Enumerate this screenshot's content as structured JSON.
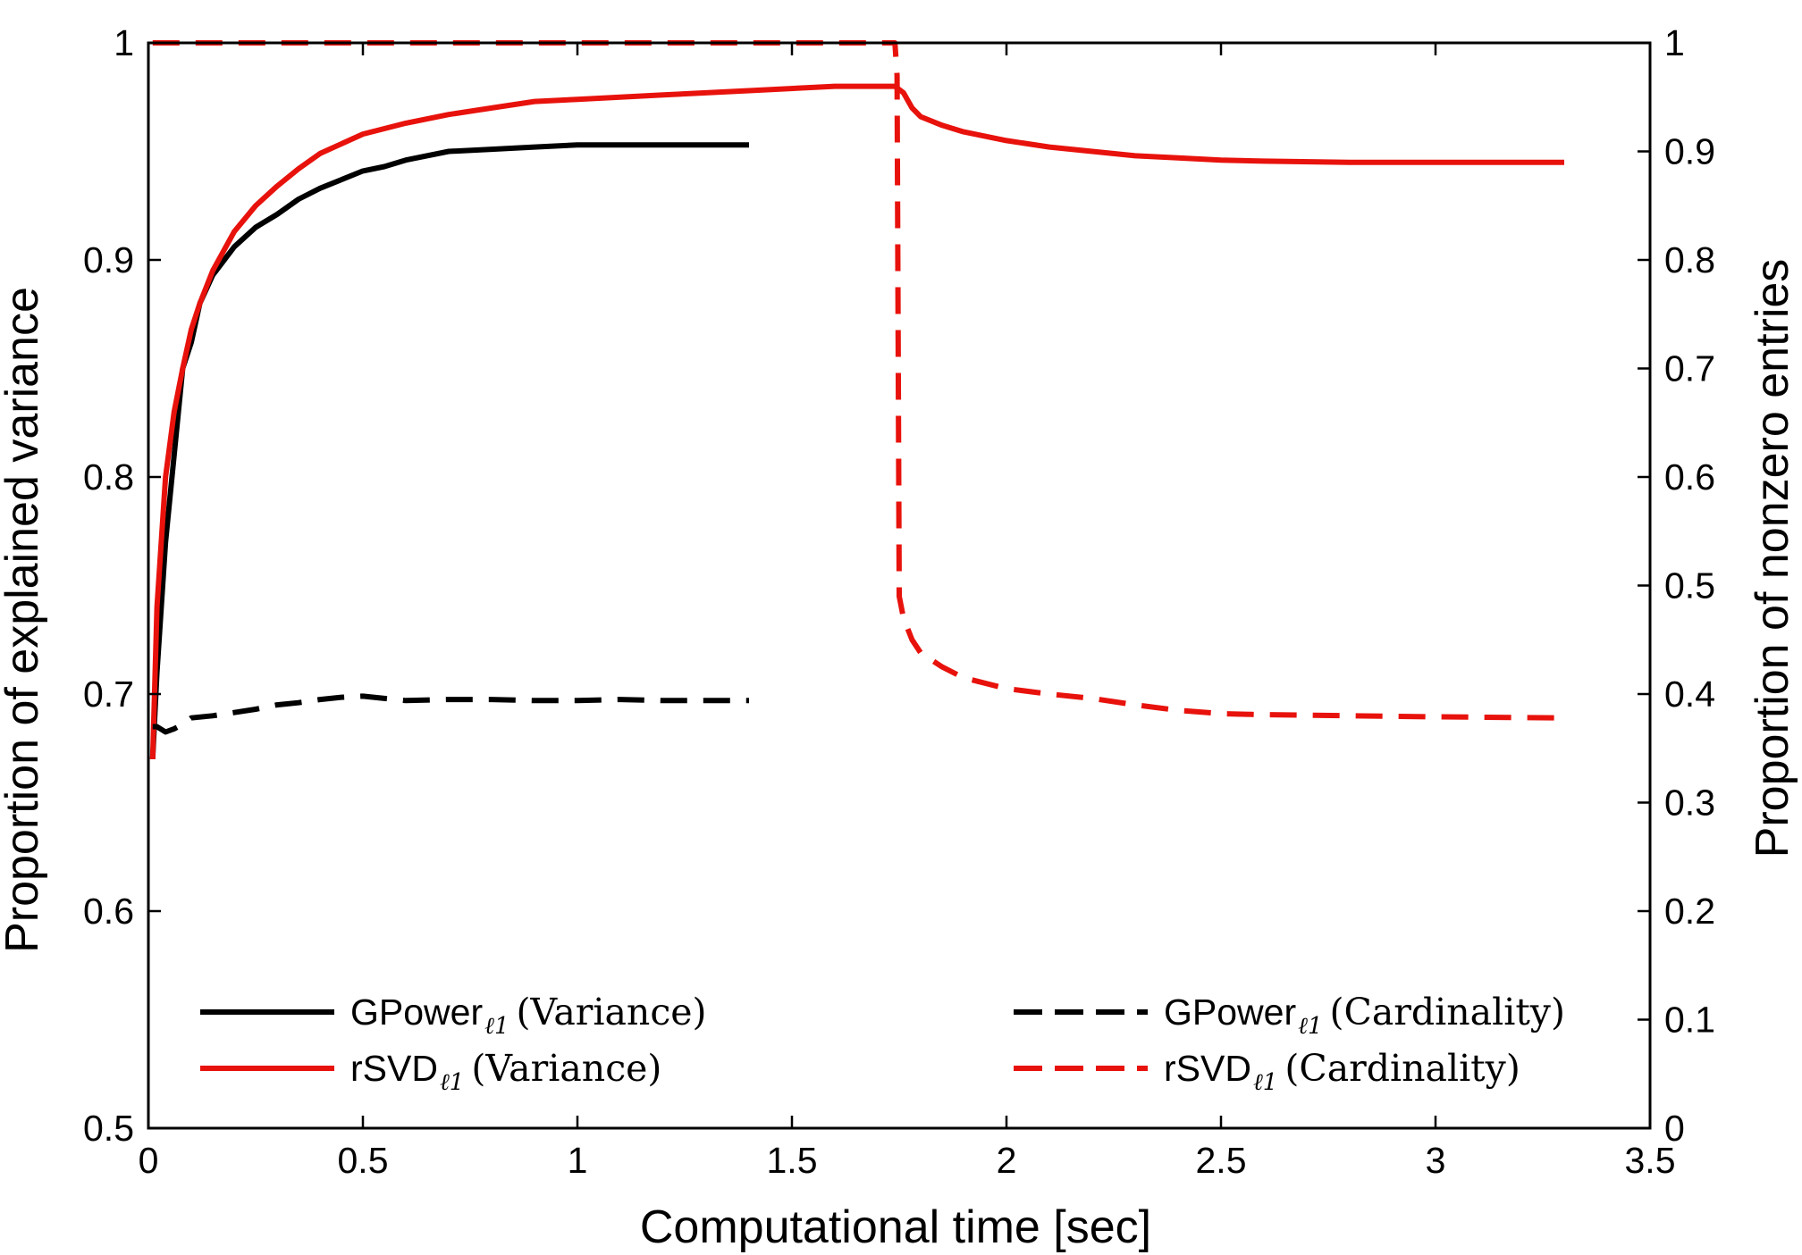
{
  "chart_data": {
    "type": "line",
    "title": "",
    "xlabel": "Computational time [sec]",
    "ylabel_left": "Proportion of explained variance",
    "ylabel_right": "Proportion of nonzero entries",
    "xlim": [
      0,
      3.5
    ],
    "ylim_left": [
      0.5,
      1.0
    ],
    "ylim_right": [
      0,
      1
    ],
    "x_ticks": [
      "0",
      "0.5",
      "1",
      "1.5",
      "2",
      "2.5",
      "3",
      "3.5"
    ],
    "y_left_ticks": [
      "0.5",
      "0.6",
      "0.7",
      "0.8",
      "0.9",
      "1"
    ],
    "y_right_ticks": [
      "0",
      "0.1",
      "0.2",
      "0.3",
      "0.4",
      "0.5",
      "0.6",
      "0.7",
      "0.8",
      "0.9",
      "1"
    ],
    "grid": false,
    "series": [
      {
        "name": "GPower (Variance)",
        "legend_main": "GPower",
        "legend_sub": "ℓ1",
        "legend_suffix": "(Variance)",
        "axis": "left",
        "color": "#000000",
        "dash": "solid",
        "x": [
          0.01,
          0.02,
          0.04,
          0.06,
          0.08,
          0.1,
          0.12,
          0.15,
          0.2,
          0.25,
          0.3,
          0.35,
          0.4,
          0.45,
          0.5,
          0.55,
          0.6,
          0.7,
          0.8,
          0.9,
          1.0,
          1.1,
          1.2,
          1.3,
          1.4
        ],
        "y": [
          0.67,
          0.71,
          0.77,
          0.81,
          0.85,
          0.862,
          0.88,
          0.893,
          0.906,
          0.915,
          0.921,
          0.928,
          0.933,
          0.937,
          0.941,
          0.943,
          0.946,
          0.95,
          0.951,
          0.952,
          0.953,
          0.953,
          0.953,
          0.953,
          0.953
        ]
      },
      {
        "name": "rSVD (Variance)",
        "legend_main": "rSVD",
        "legend_sub": "ℓ1",
        "legend_suffix": "(Variance)",
        "axis": "left",
        "color": "#e8120c",
        "dash": "solid",
        "x": [
          0.01,
          0.02,
          0.04,
          0.06,
          0.08,
          0.1,
          0.12,
          0.15,
          0.2,
          0.25,
          0.3,
          0.35,
          0.4,
          0.5,
          0.6,
          0.7,
          0.8,
          0.9,
          1.0,
          1.2,
          1.4,
          1.6,
          1.7,
          1.74,
          1.76,
          1.78,
          1.8,
          1.85,
          1.9,
          2.0,
          2.1,
          2.2,
          2.3,
          2.4,
          2.5,
          2.6,
          2.8,
          3.0,
          3.3
        ],
        "y": [
          0.67,
          0.74,
          0.8,
          0.83,
          0.85,
          0.868,
          0.88,
          0.895,
          0.913,
          0.925,
          0.934,
          0.942,
          0.949,
          0.958,
          0.963,
          0.967,
          0.97,
          0.973,
          0.974,
          0.976,
          0.978,
          0.98,
          0.98,
          0.98,
          0.977,
          0.97,
          0.966,
          0.962,
          0.959,
          0.955,
          0.952,
          0.95,
          0.948,
          0.947,
          0.946,
          0.9455,
          0.945,
          0.945,
          0.945
        ]
      },
      {
        "name": "GPower (Cardinality)",
        "legend_main": "GPower",
        "legend_sub": "ℓ1",
        "legend_suffix": "(Cardinality)",
        "axis": "right",
        "color": "#000000",
        "dash": "dashed",
        "x": [
          0.01,
          0.02,
          0.04,
          0.06,
          0.08,
          0.1,
          0.15,
          0.2,
          0.25,
          0.3,
          0.35,
          0.4,
          0.45,
          0.5,
          0.55,
          0.6,
          0.7,
          0.8,
          0.9,
          1.0,
          1.1,
          1.2,
          1.3,
          1.4
        ],
        "y": [
          0.37,
          0.37,
          0.365,
          0.368,
          0.372,
          0.378,
          0.38,
          0.383,
          0.386,
          0.39,
          0.392,
          0.395,
          0.397,
          0.398,
          0.396,
          0.394,
          0.395,
          0.395,
          0.394,
          0.394,
          0.395,
          0.394,
          0.394,
          0.394
        ]
      },
      {
        "name": "rSVD (Cardinality)",
        "legend_main": "rSVD",
        "legend_sub": "ℓ1",
        "legend_suffix": "(Cardinality)",
        "axis": "right",
        "color": "#e8120c",
        "dash": "dashed",
        "x": [
          0.01,
          1.74,
          1.745,
          1.75,
          1.76,
          1.78,
          1.8,
          1.85,
          1.9,
          2.0,
          2.1,
          2.2,
          2.3,
          2.4,
          2.5,
          2.6,
          2.8,
          3.0,
          3.3
        ],
        "y": [
          1.0,
          1.0,
          0.97,
          0.49,
          0.47,
          0.45,
          0.438,
          0.425,
          0.415,
          0.405,
          0.4,
          0.396,
          0.39,
          0.385,
          0.382,
          0.381,
          0.38,
          0.379,
          0.378
        ]
      }
    ],
    "legend": [
      {
        "series": 0,
        "position": "bottom-left"
      },
      {
        "series": 1,
        "position": "bottom-left"
      },
      {
        "series": 2,
        "position": "bottom-right"
      },
      {
        "series": 3,
        "position": "bottom-right"
      }
    ]
  }
}
